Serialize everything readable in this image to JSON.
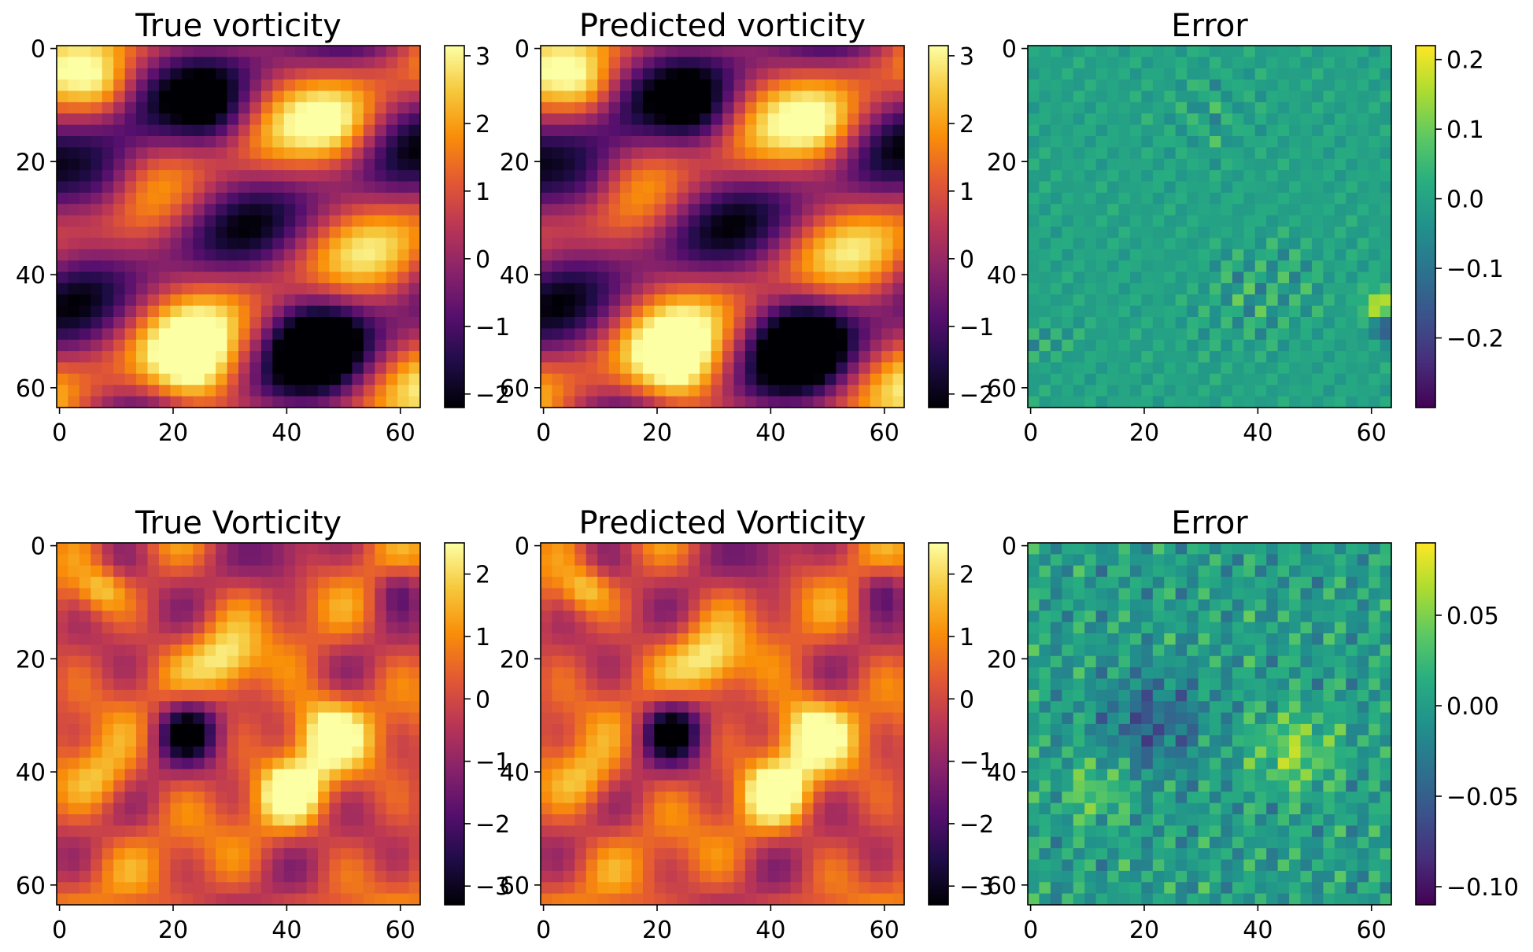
{
  "chart_data": [
    {
      "type": "heatmap",
      "title": "True vorticity",
      "colormap": "inferno",
      "grid": false,
      "x": {
        "range": [
          0,
          63
        ],
        "ticks": [
          "0",
          "20",
          "40",
          "60"
        ]
      },
      "y": {
        "range": [
          0,
          63
        ],
        "ticks": [
          "0",
          "20",
          "40",
          "60"
        ],
        "inverted": true
      },
      "colorbar": {
        "range": [
          -2.2,
          3.15
        ],
        "ticks": [
          "3",
          "2",
          "1",
          "0",
          "−1",
          "−2"
        ],
        "tick_values": [
          3,
          2,
          1,
          0,
          -1,
          -2
        ]
      }
    },
    {
      "type": "heatmap",
      "title": "Predicted vorticity",
      "colormap": "inferno",
      "grid": false,
      "x": {
        "range": [
          0,
          63
        ],
        "ticks": [
          "0",
          "20",
          "40",
          "60"
        ]
      },
      "y": {
        "range": [
          0,
          63
        ],
        "ticks": [
          "0",
          "20",
          "40",
          "60"
        ],
        "inverted": true
      },
      "colorbar": {
        "range": [
          -2.2,
          3.15
        ],
        "ticks": [
          "3",
          "2",
          "1",
          "0",
          "−1",
          "−2"
        ],
        "tick_values": [
          3,
          2,
          1,
          0,
          -1,
          -2
        ]
      }
    },
    {
      "type": "heatmap",
      "title": "Error",
      "colormap": "viridis",
      "grid": false,
      "x": {
        "range": [
          0,
          63
        ],
        "ticks": [
          "0",
          "20",
          "40",
          "60"
        ]
      },
      "y": {
        "range": [
          0,
          63
        ],
        "ticks": [
          "0",
          "20",
          "40",
          "60"
        ],
        "inverted": true
      },
      "colorbar": {
        "range": [
          -0.3,
          0.22
        ],
        "ticks": [
          "0.2",
          "0.1",
          "0.0",
          "−0.1",
          "−0.2"
        ],
        "tick_values": [
          0.2,
          0.1,
          0.0,
          -0.1,
          -0.2
        ]
      }
    },
    {
      "type": "heatmap",
      "title": "True Vorticity",
      "colormap": "inferno",
      "grid": false,
      "x": {
        "range": [
          0,
          63
        ],
        "ticks": [
          "0",
          "20",
          "40",
          "60"
        ]
      },
      "y": {
        "range": [
          0,
          63
        ],
        "ticks": [
          "0",
          "20",
          "40",
          "60"
        ],
        "inverted": true
      },
      "colorbar": {
        "range": [
          -3.3,
          2.5
        ],
        "ticks": [
          "2",
          "1",
          "0",
          "−1",
          "−2",
          "−3"
        ],
        "tick_values": [
          2,
          1,
          0,
          -1,
          -2,
          -3
        ]
      }
    },
    {
      "type": "heatmap",
      "title": "Predicted Vorticity",
      "colormap": "inferno",
      "grid": false,
      "x": {
        "range": [
          0,
          63
        ],
        "ticks": [
          "0",
          "20",
          "40",
          "60"
        ]
      },
      "y": {
        "range": [
          0,
          63
        ],
        "ticks": [
          "0",
          "20",
          "40",
          "60"
        ],
        "inverted": true
      },
      "colorbar": {
        "range": [
          -3.3,
          2.5
        ],
        "ticks": [
          "2",
          "1",
          "0",
          "−1",
          "−2",
          "−3"
        ],
        "tick_values": [
          2,
          1,
          0,
          -1,
          -2,
          -3
        ]
      }
    },
    {
      "type": "heatmap",
      "title": "Error",
      "colormap": "viridis",
      "grid": false,
      "x": {
        "range": [
          0,
          63
        ],
        "ticks": [
          "0",
          "20",
          "40",
          "60"
        ]
      },
      "y": {
        "range": [
          0,
          63
        ],
        "ticks": [
          "0",
          "20",
          "40",
          "60"
        ],
        "inverted": true
      },
      "colorbar": {
        "range": [
          -0.11,
          0.09
        ],
        "ticks": [
          "0.05",
          "0.00",
          "−0.05",
          "−0.10"
        ],
        "tick_values": [
          0.05,
          0.0,
          -0.05,
          -0.1
        ]
      }
    }
  ]
}
